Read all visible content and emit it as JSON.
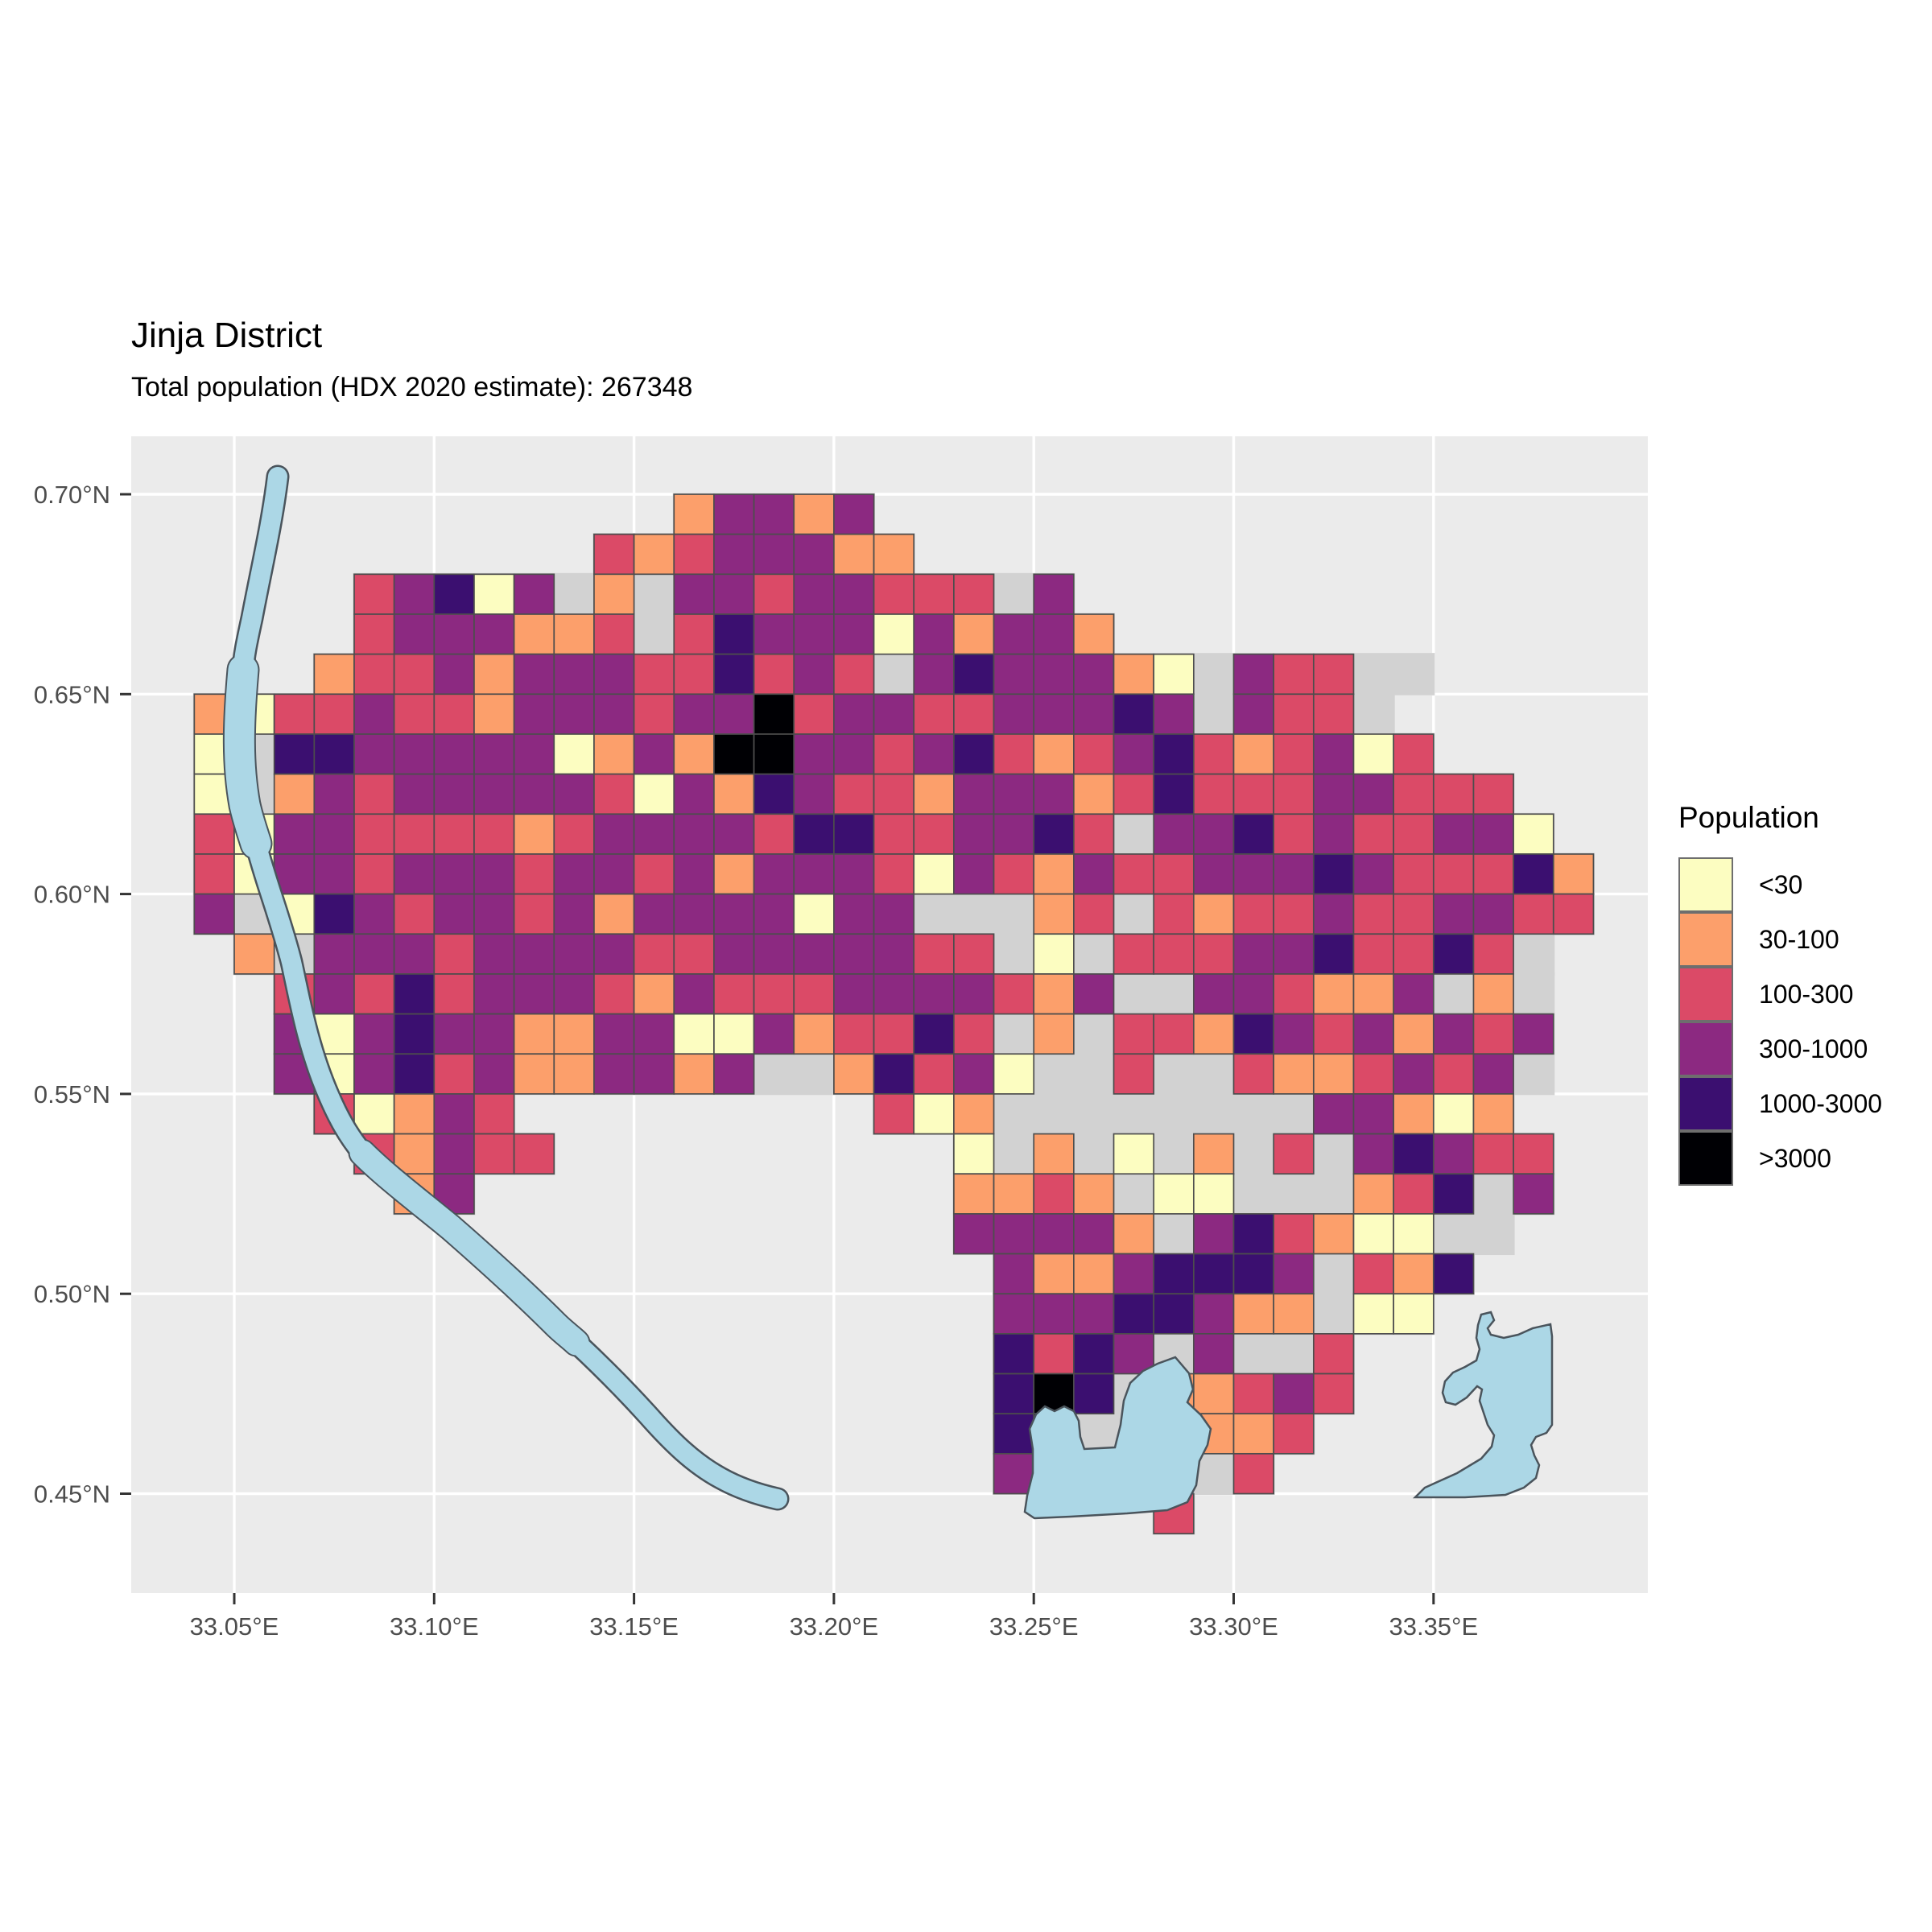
{
  "header": {
    "title": "Jinja District",
    "subtitle": "Total population (HDX 2020 estimate): 267348"
  },
  "legend": {
    "title": "Population",
    "entries": [
      {
        "label": "<30",
        "color": "#FCFDC1"
      },
      {
        "label": "30-100",
        "color": "#FC9F6B"
      },
      {
        "label": "100-300",
        "color": "#DB4A67"
      },
      {
        "label": "300-1000",
        "color": "#8C2981"
      },
      {
        "label": "1000-3000",
        "color": "#3B0F70"
      },
      {
        "label": ">3000",
        "color": "#000004"
      }
    ]
  },
  "axes": {
    "x": {
      "labels": [
        "33.05°E",
        "33.10°E",
        "33.15°E",
        "33.20°E",
        "33.25°E",
        "33.30°E",
        "33.35°E"
      ],
      "lons": [
        33.05,
        33.1,
        33.15,
        33.2,
        33.25,
        33.3,
        33.35
      ]
    },
    "y": {
      "labels": [
        "0.70°N",
        "0.65°N",
        "0.60°N",
        "0.55°N",
        "0.50°N",
        "0.45°N"
      ],
      "lats": [
        0.7,
        0.65,
        0.6,
        0.55,
        0.5,
        0.45
      ]
    }
  },
  "colors": {
    "panel": "#EBEBEB",
    "grid_line": "#FFFFFF",
    "district": "#D2D2D2",
    "cell_border": "#4D4D4D",
    "water": "#ACD7E6",
    "water_outline": "#4A545C",
    "axis_text": "#4D4D4D",
    "tick_mark": "#333333"
  },
  "chart_data": {
    "type": "heatmap",
    "subtype": "gridded-choropleth-map",
    "title": "Jinja District",
    "statistic_label": "Total population (HDX 2020 estimate)",
    "total_population": 267348,
    "legend_title": "Population",
    "bins": [
      {
        "key": "1",
        "label": "<30",
        "color": "#FCFDC1"
      },
      {
        "key": "2",
        "label": "30-100",
        "color": "#FC9F6B"
      },
      {
        "key": "3",
        "label": "100-300",
        "color": "#DB4A67"
      },
      {
        "key": "4",
        "label": "300-1000",
        "color": "#8C2981"
      },
      {
        "key": "5",
        "label": "1000-3000",
        "color": "#3B0F70"
      },
      {
        "key": "6",
        "label": ">3000",
        "color": "#000004"
      }
    ],
    "grid_origin": {
      "lon_left": 33.04,
      "lat_top": 0.7
    },
    "cell_size_deg": 0.01,
    "grid_legend": "rows north to south; . = outside district, g = district land without population cell, 1-6 = population bin",
    "grid_rows": [
      "............24424..................",
      "..........32344422.................",
      "....34514g2g44344333g4.............",
      "....3444223g35444142442............",
      "...23342444335343g4544421g433gg....",
      "2133433244434463443344454g433g.....",
      "1g55444441242664434532345323413....",
      "1g243444443142543324442353334 4333..",
      "3144333323 4444355334453g4453433441.",
      "31443444344342444314324334445433352",
      "4g1543443424444144ggg23g32334334433",
      ".2g44434444334444433g1g3334453353g.",
      "..343534443243334444324gg443224g2g.",
      "..414544224411423353g2g33254342434.",
      "..414534224424gg25341gg3gg3223434g.",
      "...31243.........312gggggggg44212..",
      "....32433..........1g2g1g2g3g45433.",
      ".....24............2232g11ggg235g4.",
      "...................44442g453211gg..",
      "....................42245554g325...",
      "....................44455422g11....",
      "....................5354g4gg3......",
      "....................565g22343......",
      "....................56ggg223.......",
      "....................45gggg3........",
      "........................3.........."
    ],
    "axis": {
      "x_ticks_deg_east": [
        33.05,
        33.1,
        33.15,
        33.2,
        33.25,
        33.3,
        33.35
      ],
      "y_ticks_deg_north": [
        0.7,
        0.65,
        0.6,
        0.55,
        0.5,
        0.45
      ],
      "grid": true,
      "legend_position": "right"
    }
  }
}
